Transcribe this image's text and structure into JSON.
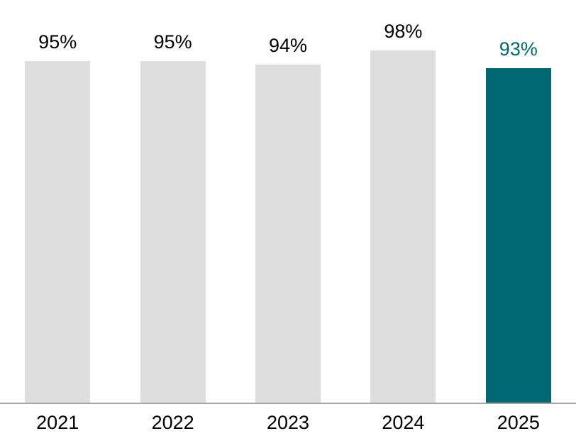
{
  "chart_data": {
    "type": "bar",
    "categories": [
      "2021",
      "2022",
      "2023",
      "2024",
      "2025"
    ],
    "values": [
      95,
      95,
      94,
      98,
      93
    ],
    "value_labels": [
      "95%",
      "95%",
      "94%",
      "98%",
      "93%"
    ],
    "title": "",
    "xlabel": "",
    "ylabel": "",
    "ylim": [
      0,
      100
    ],
    "grid": false,
    "legend": false,
    "highlight_index": 4,
    "colors": {
      "bar_default": "#dedede",
      "bar_highlight": "#006872",
      "value_label_default": "#000000",
      "value_label_highlight": "#006872",
      "axis_line": "#a6a6a6",
      "tick_label": "#000000",
      "background": "#ffffff"
    }
  }
}
